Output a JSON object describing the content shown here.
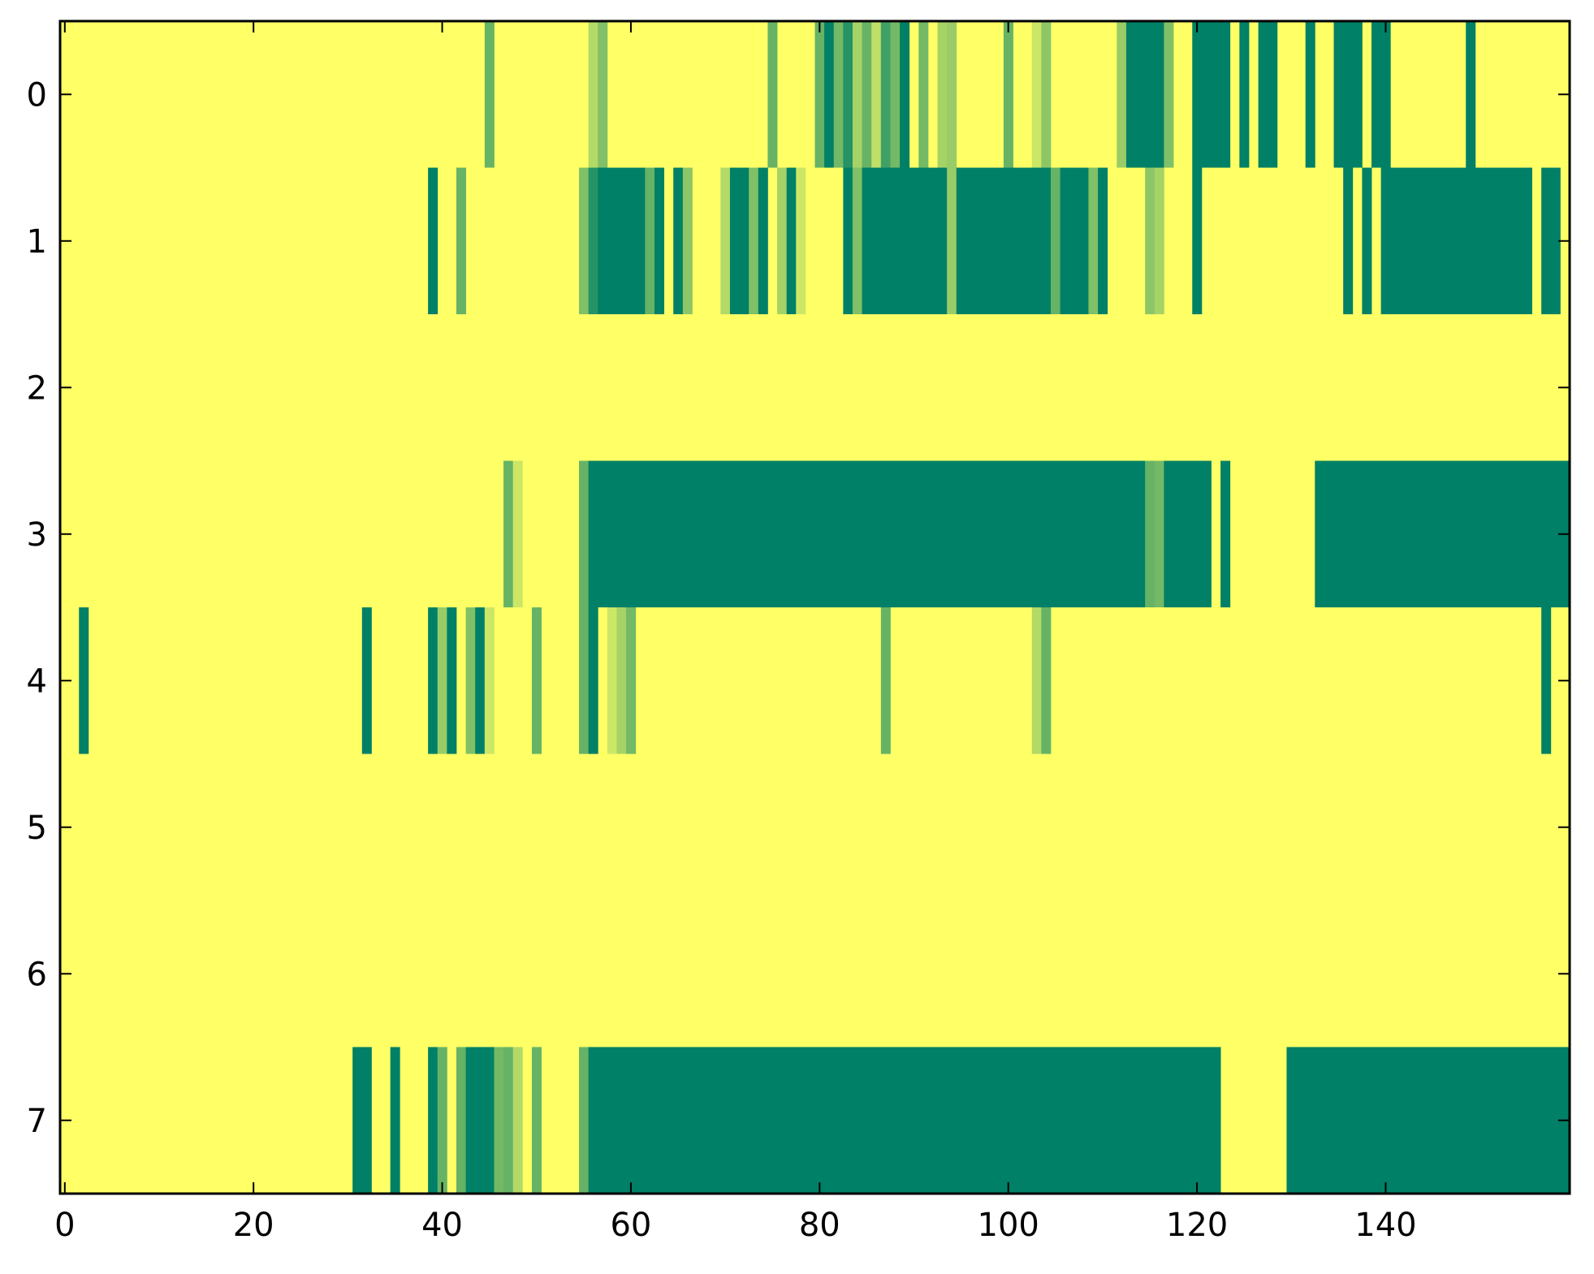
{
  "chart_data": {
    "type": "heatmap",
    "title": "",
    "xlabel": "",
    "ylabel": "",
    "colormap": "summer_r",
    "colors": {
      "low": "#ffff66",
      "high": "#008066",
      "axis": "#000000",
      "background": "#ffffff"
    },
    "xlim": [
      -0.5,
      159.5
    ],
    "ylim": [
      7.5,
      -0.5
    ],
    "x_ticks": [
      0,
      20,
      40,
      60,
      80,
      100,
      120,
      140
    ],
    "x_tick_labels": [
      "0",
      "20",
      "40",
      "60",
      "80",
      "100",
      "120",
      "140"
    ],
    "y_ticks": [
      0,
      1,
      2,
      3,
      4,
      5,
      6,
      7
    ],
    "y_tick_labels": [
      "0",
      "1",
      "2",
      "3",
      "4",
      "5",
      "6",
      "7"
    ],
    "n_rows": 8,
    "n_cols": 160,
    "default_value": 0,
    "rows": [
      {
        "row": 0,
        "runs": [
          [
            45,
            45,
            0.6
          ],
          [
            56,
            56,
            0.3
          ],
          [
            57,
            57,
            0.5
          ],
          [
            75,
            75,
            0.6
          ],
          [
            80,
            80,
            0.6
          ],
          [
            81,
            81,
            1.0
          ],
          [
            82,
            82,
            0.55
          ],
          [
            83,
            83,
            0.85
          ],
          [
            84,
            84,
            0.35
          ],
          [
            85,
            85,
            0.6
          ],
          [
            86,
            86,
            0.25
          ],
          [
            87,
            87,
            0.75
          ],
          [
            88,
            88,
            0.55
          ],
          [
            89,
            89,
            1.0
          ],
          [
            91,
            91,
            0.55
          ],
          [
            93,
            93,
            0.35
          ],
          [
            94,
            94,
            0.4
          ],
          [
            100,
            100,
            0.6
          ],
          [
            103,
            103,
            0.2
          ],
          [
            104,
            104,
            0.45
          ],
          [
            112,
            112,
            0.4
          ],
          [
            113,
            116,
            1.0
          ],
          [
            117,
            117,
            0.5
          ],
          [
            120,
            123,
            1.0
          ],
          [
            125,
            125,
            1.0
          ],
          [
            127,
            128,
            1.0
          ],
          [
            132,
            132,
            1.0
          ],
          [
            135,
            137,
            1.0
          ],
          [
            139,
            140,
            1.0
          ],
          [
            149,
            149,
            1.0
          ]
        ]
      },
      {
        "row": 1,
        "runs": [
          [
            39,
            39,
            1.0
          ],
          [
            42,
            42,
            0.6
          ],
          [
            55,
            55,
            0.5
          ],
          [
            56,
            56,
            0.85
          ],
          [
            57,
            61,
            1.0
          ],
          [
            62,
            62,
            0.6
          ],
          [
            63,
            63,
            1.0
          ],
          [
            65,
            65,
            1.0
          ],
          [
            66,
            66,
            0.45
          ],
          [
            70,
            70,
            0.3
          ],
          [
            71,
            72,
            1.0
          ],
          [
            73,
            73,
            0.5
          ],
          [
            74,
            74,
            1.0
          ],
          [
            76,
            76,
            0.35
          ],
          [
            77,
            77,
            1.0
          ],
          [
            78,
            78,
            0.2
          ],
          [
            83,
            83,
            1.0
          ],
          [
            84,
            84,
            0.5
          ],
          [
            85,
            93,
            1.0
          ],
          [
            94,
            94,
            0.4
          ],
          [
            95,
            104,
            1.0
          ],
          [
            105,
            105,
            0.6
          ],
          [
            106,
            108,
            1.0
          ],
          [
            109,
            109,
            0.5
          ],
          [
            110,
            110,
            1.0
          ],
          [
            115,
            115,
            0.45
          ],
          [
            116,
            116,
            0.35
          ],
          [
            120,
            120,
            1.0
          ],
          [
            136,
            136,
            1.0
          ],
          [
            138,
            138,
            1.0
          ],
          [
            140,
            155,
            1.0
          ],
          [
            157,
            158,
            1.0
          ]
        ]
      },
      {
        "row": 2,
        "runs": []
      },
      {
        "row": 3,
        "runs": [
          [
            47,
            47,
            0.6
          ],
          [
            48,
            48,
            0.2
          ],
          [
            55,
            55,
            0.6
          ],
          [
            56,
            114,
            1.0
          ],
          [
            115,
            115,
            0.6
          ],
          [
            116,
            116,
            0.55
          ],
          [
            117,
            121,
            1.0
          ],
          [
            123,
            123,
            1.0
          ],
          [
            133,
            159,
            1.0
          ]
        ]
      },
      {
        "row": 4,
        "runs": [
          [
            2,
            2,
            1.0
          ],
          [
            32,
            32,
            1.0
          ],
          [
            39,
            39,
            1.0
          ],
          [
            40,
            40,
            0.4
          ],
          [
            41,
            41,
            1.0
          ],
          [
            43,
            43,
            0.5
          ],
          [
            44,
            44,
            1.0
          ],
          [
            45,
            45,
            0.2
          ],
          [
            50,
            50,
            0.6
          ],
          [
            55,
            55,
            0.6
          ],
          [
            56,
            56,
            1.0
          ],
          [
            58,
            58,
            0.2
          ],
          [
            59,
            59,
            0.35
          ],
          [
            60,
            60,
            0.55
          ],
          [
            87,
            87,
            0.6
          ],
          [
            103,
            103,
            0.3
          ],
          [
            104,
            104,
            0.6
          ],
          [
            157,
            157,
            1.0
          ]
        ]
      },
      {
        "row": 5,
        "runs": []
      },
      {
        "row": 6,
        "runs": []
      },
      {
        "row": 7,
        "runs": [
          [
            31,
            32,
            1.0
          ],
          [
            35,
            35,
            1.0
          ],
          [
            39,
            39,
            1.0
          ],
          [
            40,
            40,
            0.6
          ],
          [
            42,
            42,
            0.6
          ],
          [
            43,
            45,
            1.0
          ],
          [
            46,
            46,
            0.55
          ],
          [
            47,
            47,
            0.6
          ],
          [
            48,
            48,
            0.3
          ],
          [
            50,
            50,
            0.6
          ],
          [
            55,
            55,
            0.6
          ],
          [
            56,
            122,
            1.0
          ],
          [
            130,
            159,
            1.0
          ]
        ]
      }
    ]
  }
}
